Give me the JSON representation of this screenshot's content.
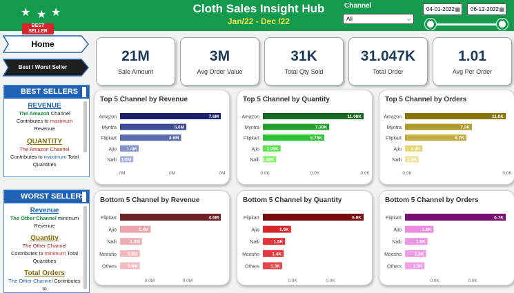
{
  "header": {
    "title": "Cloth Sales Insight Hub",
    "subtitle": "Jan/22 - Dec /22",
    "badge_text": "BEST SELLER",
    "channel_label": "Channel",
    "channel_value": "All",
    "date_start": "04-01-2022",
    "date_end": "06-12-2022",
    "date_range_fraction": [
      0,
      1
    ],
    "bg_color": "#139a4c"
  },
  "nav": {
    "home_label": "Home",
    "best_worst_label": "Best / Worst Seller"
  },
  "best_sellers": {
    "heading": "BEST SELLERS",
    "revenue_title": "REVENUE",
    "revenue_text": [
      "The Amazon",
      " Channel",
      "Contributes to ",
      "maximum",
      "Revenue"
    ],
    "quantity_title": "QUANTITY",
    "quantity_text": [
      "The Amazon Channel",
      "Contributes to ",
      "maximum",
      " Total",
      "Quantities"
    ]
  },
  "worst_sellers": {
    "heading": "WORST SELLERS",
    "revenue_title": "Revenue",
    "revenue_text": [
      "The Other Channel",
      " minimum",
      "Revenue"
    ],
    "quantity_title": "Quantity",
    "quantity_text": [
      "The Other Channel",
      "Contributes to ",
      "minimum",
      " Total",
      "Quantities"
    ],
    "orders_title": "Total Orders",
    "orders_text": [
      "The Other Channel",
      " Contributes to"
    ]
  },
  "kpis": [
    {
      "value": "21M",
      "label": "Sale Amount"
    },
    {
      "value": "3M",
      "label": "Avg Order Value"
    },
    {
      "value": "31K",
      "label": "Total Qty Sold"
    },
    {
      "value": "31.047K",
      "label": "Total Order"
    },
    {
      "value": "1.01",
      "label": "Avg Per Order"
    }
  ],
  "chart_data": [
    {
      "type": "bar",
      "orientation": "horizontal",
      "title": "Top 5 Channel by Revenue",
      "categories": [
        "Amazon",
        "Myntra",
        "Flipkart",
        "Ajio",
        "Nalli"
      ],
      "values": [
        7.6,
        5.0,
        4.6,
        1.4,
        1.0
      ],
      "labels": [
        "7.6M",
        "5.0M",
        "4.6M",
        "1.4M",
        "1.0M"
      ],
      "colors": [
        "#1c1f6e",
        "#3c4a96",
        "#5b6bb0",
        "#8391cc",
        "#a8b2dd"
      ],
      "xticks": [
        "0M",
        "0M",
        "0M"
      ],
      "xlim": [
        0,
        7.6
      ]
    },
    {
      "type": "bar",
      "orientation": "horizontal",
      "title": "Top 5 Channel by Quantity",
      "categories": [
        "Amazon",
        "Myntra",
        "Flipkart",
        "Ajio",
        "Nalli"
      ],
      "values": [
        11.08,
        7.3,
        6.75,
        1.95,
        1.48
      ],
      "labels": [
        "11.08K",
        "7.30K",
        "6.75K",
        "1.95K",
        "1.48K"
      ],
      "colors": [
        "#0f6a1f",
        "#22a12d",
        "#2fc235",
        "#5ee24f",
        "#87f06f"
      ],
      "xticks": [
        "0.0K",
        "0.0K",
        "0.0K"
      ],
      "xlim": [
        0,
        11.08
      ]
    },
    {
      "type": "bar",
      "orientation": "horizontal",
      "title": "Top 5 Channel by Orders",
      "categories": [
        "Amazon",
        "Myntra",
        "Flipkart",
        "Ajio",
        "Nalli"
      ],
      "values": [
        11.0,
        7.3,
        6.7,
        1.9,
        1.5
      ],
      "labels": [
        "11.0K",
        "7.3K",
        "6.7K",
        "1.9K",
        "1.5K"
      ],
      "colors": [
        "#8a7400",
        "#b09a2b",
        "#c4ad45",
        "#e6d77c",
        "#efe29a"
      ],
      "xticks": [
        "0.0K",
        "0.0K"
      ],
      "xlim": [
        0,
        11.0
      ]
    },
    {
      "type": "bar",
      "orientation": "horizontal",
      "title": "Bottom 5 Channel by Revenue",
      "categories": [
        "Flipkart",
        "Ajio",
        "Nalli",
        "Meesho",
        "Others"
      ],
      "values": [
        4.6,
        1.4,
        1.0,
        0.9,
        0.9
      ],
      "labels": [
        "4.6M",
        "1.4M",
        "1.0M",
        "0.9M",
        "0.9M"
      ],
      "colors": [
        "#6f2228",
        "#e9a5ab",
        "#eeaeb3",
        "#f2b8bc",
        "#f3bcc0"
      ],
      "xticks": [
        "0.0M",
        "0.0M"
      ],
      "xlim": [
        0,
        4.6
      ]
    },
    {
      "type": "bar",
      "orientation": "horizontal",
      "title": "Bottom 5 Channel by Quantity",
      "categories": [
        "Flipkart",
        "Ajio",
        "Nalli",
        "Meesho",
        "Others"
      ],
      "values": [
        6.8,
        1.9,
        1.5,
        1.4,
        1.3
      ],
      "labels": [
        "6.8K",
        "1.9K",
        "1.5K",
        "1.4K",
        "1.3K"
      ],
      "colors": [
        "#7a0d10",
        "#d7262b",
        "#e0333a",
        "#e5393f",
        "#ea454b"
      ],
      "xticks": [
        "0.0K",
        "0.0K"
      ],
      "xlim": [
        0,
        6.8
      ]
    },
    {
      "type": "bar",
      "orientation": "horizontal",
      "title": "Bottom 5 Channel by Orders",
      "categories": [
        "Flipkart",
        "Ajio",
        "Nalli",
        "Meesho",
        "Others"
      ],
      "values": [
        6.7,
        1.9,
        1.5,
        1.4,
        1.3
      ],
      "labels": [
        "6.7K",
        "1.9K",
        "1.5K",
        "1.4K",
        "1.3K"
      ],
      "colors": [
        "#7a0f73",
        "#ea8be0",
        "#ee95e4",
        "#f09be6",
        "#f2a1e8"
      ],
      "xticks": [
        "0.0K",
        "0.0K"
      ],
      "xlim": [
        0,
        6.7
      ]
    }
  ]
}
